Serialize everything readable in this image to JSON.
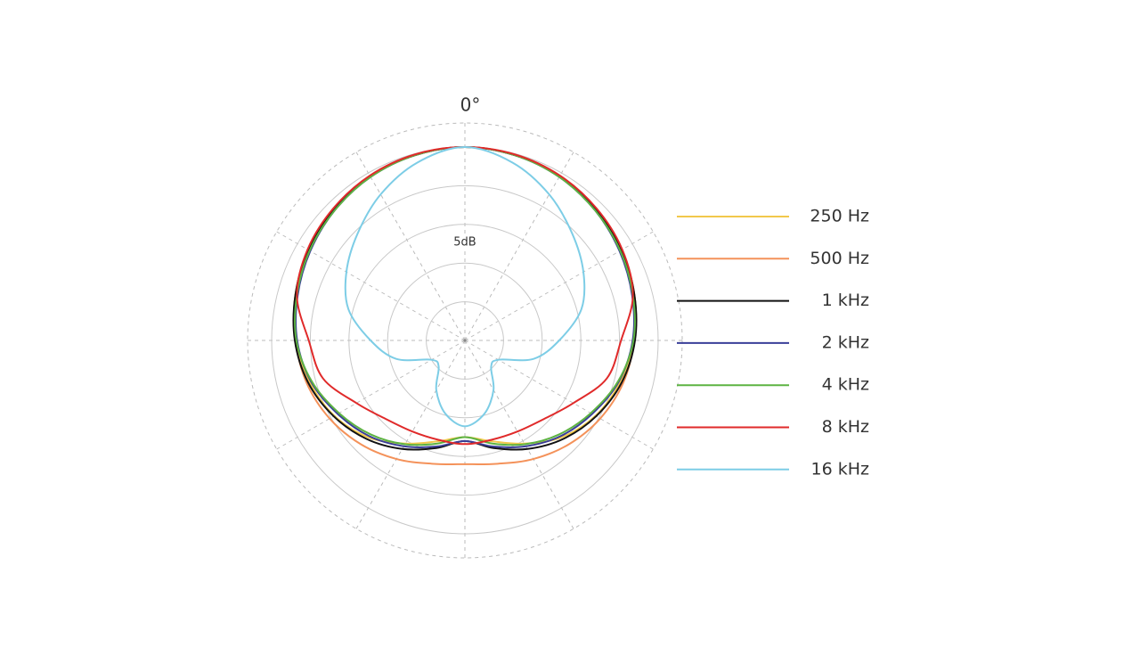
{
  "chart_data": {
    "type": "polar",
    "angle_label": "0°",
    "scale_label": "5dB",
    "angles": [
      0,
      15,
      30,
      45,
      60,
      75,
      90,
      105,
      120,
      135,
      150,
      165,
      180,
      195,
      210,
      225,
      240,
      255,
      270,
      285,
      300,
      315,
      330,
      345
    ],
    "rlim": [
      -25,
      0
    ],
    "rticks": [
      -20,
      -15,
      -10,
      -5,
      0
    ],
    "grid": true,
    "legend": "right",
    "series": [
      {
        "name": "250 Hz",
        "color": "#f2c84b",
        "values": [
          0,
          -0.2,
          -0.5,
          -1,
          -1.6,
          -2.3,
          -3.1,
          -4.2,
          -5.5,
          -7.3,
          -9.6,
          -11.5,
          -12.5,
          -11.5,
          -9.6,
          -7.3,
          -5.5,
          -4.2,
          -3.1,
          -2.3,
          -1.6,
          -1,
          -0.5,
          -0.2
        ]
      },
      {
        "name": "500 Hz",
        "color": "#f4925a",
        "values": [
          0,
          -0.2,
          -0.5,
          -1,
          -1.6,
          -2.3,
          -3.1,
          -3.8,
          -4.8,
          -6,
          -7.3,
          -8.5,
          -9,
          -8.5,
          -7.3,
          -6,
          -4.8,
          -3.8,
          -3.1,
          -2.3,
          -1.6,
          -1,
          -0.5,
          -0.2
        ]
      },
      {
        "name": "1 kHz",
        "color": "#111111",
        "values": [
          0,
          -0.2,
          -0.5,
          -1,
          -1.6,
          -2.3,
          -3,
          -4,
          -5.4,
          -7,
          -8.8,
          -10.6,
          -12,
          -10.6,
          -8.8,
          -7,
          -5.4,
          -4,
          -3,
          -2.3,
          -1.6,
          -1,
          -0.5,
          -0.2
        ]
      },
      {
        "name": "2 kHz",
        "color": "#3a3f98",
        "values": [
          0,
          -0.2,
          -0.6,
          -1.2,
          -1.9,
          -2.6,
          -3.3,
          -4.4,
          -6,
          -7.5,
          -9.2,
          -10.8,
          -12,
          -10.8,
          -9.2,
          -7.5,
          -6,
          -4.4,
          -3.3,
          -2.6,
          -1.9,
          -1.2,
          -0.6,
          -0.2
        ]
      },
      {
        "name": "4 kHz",
        "color": "#5db342",
        "values": [
          0,
          -0.2,
          -0.6,
          -1.2,
          -1.8,
          -2.5,
          -3.2,
          -4.5,
          -6.2,
          -7.8,
          -9.5,
          -11.2,
          -12.5,
          -11.2,
          -9.5,
          -7.8,
          -6.2,
          -4.5,
          -3.2,
          -2.5,
          -1.8,
          -1.2,
          -0.6,
          -0.2
        ]
      },
      {
        "name": "8 kHz",
        "color": "#e02a2a",
        "values": [
          0,
          -0.1,
          -0.4,
          -0.9,
          -1.5,
          -2.5,
          -4.8,
          -6,
          -8.8,
          -10.6,
          -11.4,
          -11.7,
          -11.6,
          -11.7,
          -11.4,
          -10.6,
          -8.8,
          -6,
          -4.8,
          -2.5,
          -1.5,
          -0.9,
          -0.4,
          -0.1
        ]
      },
      {
        "name": "16 kHz",
        "color": "#7dcde6",
        "values": [
          0,
          -1.2,
          -3.2,
          -5.4,
          -7.3,
          -9.4,
          -12.8,
          -15.8,
          -20,
          -20.2,
          -17.6,
          -15.2,
          -13.9,
          -15.2,
          -17.6,
          -20.2,
          -20,
          -15.8,
          -12.8,
          -9.4,
          -7.3,
          -5.4,
          -3.2,
          -1.2
        ]
      }
    ]
  }
}
